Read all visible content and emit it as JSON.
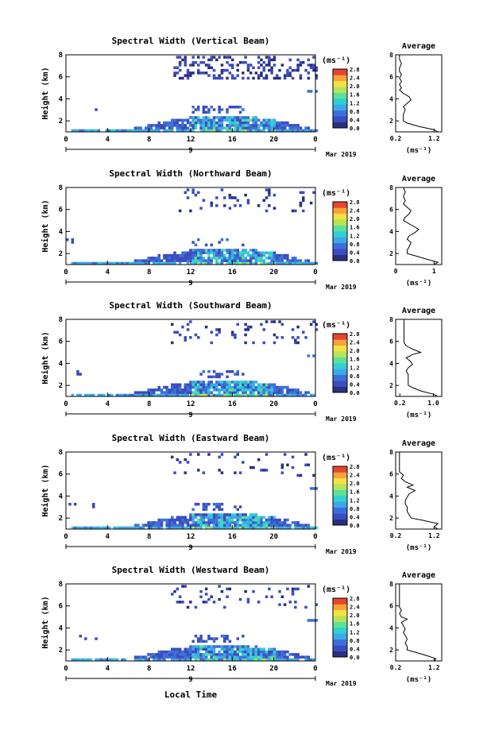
{
  "common": {
    "ylabel": "Height (km)",
    "y_ticks": [
      "2",
      "4",
      "6",
      "8"
    ],
    "x_ticks": [
      "0",
      "4",
      "8",
      "12",
      "16",
      "20",
      "0"
    ],
    "day_label": "9",
    "month_label": "Mar 2019",
    "unit_label": "(ms⁻¹)",
    "colorbar_ticks": [
      "0.0",
      "0.4",
      "0.8",
      "1.2",
      "1.6",
      "2.0",
      "2.4",
      "2.8"
    ],
    "avg_title": "Average",
    "avg_y_ticks": [
      "2",
      "4",
      "6",
      "8"
    ],
    "avg_xlabel": "(ms⁻¹)",
    "xlabel": "Local Time",
    "colors": {
      "colormap": [
        "#2b2f7e",
        "#3b4cc0",
        "#3d6fd8",
        "#3ea8e6",
        "#2fd0d4",
        "#5de09a",
        "#b6e35a",
        "#f3e245",
        "#f7a33a",
        "#e6452e"
      ],
      "background": "#ffffff"
    }
  },
  "chart_data": [
    {
      "type": "heatmap",
      "title": "Spectral Width (Vertical Beam)",
      "xlim": [
        0,
        24
      ],
      "ylim": [
        1,
        8
      ],
      "clim": [
        0.0,
        2.8
      ],
      "avg_profile": {
        "type": "line",
        "title": "Average",
        "x_ticks": [
          "0.2",
          "1.2"
        ],
        "xlim": [
          0.2,
          1.4
        ],
        "heights": [
          1.0,
          1.2,
          1.5,
          1.8,
          2.0,
          2.3,
          2.6,
          3.0,
          3.3,
          3.6,
          3.9,
          4.2,
          4.5,
          4.8,
          5.0,
          5.3,
          5.6,
          5.9,
          6.2,
          6.5,
          6.8,
          7.2,
          7.6,
          8.0
        ],
        "values": [
          1.3,
          1.2,
          0.8,
          0.5,
          0.4,
          0.4,
          0.4,
          0.45,
          0.4,
          0.5,
          0.6,
          0.55,
          0.4,
          0.3,
          0.35,
          0.3,
          0.35,
          0.3,
          0.35,
          0.3,
          0.3,
          0.35,
          0.3,
          0.3
        ]
      }
    },
    {
      "type": "heatmap",
      "title": "Spectral Width (Northward Beam)",
      "xlim": [
        0,
        24
      ],
      "ylim": [
        1,
        8
      ],
      "clim": [
        0.0,
        2.8
      ],
      "avg_profile": {
        "type": "line",
        "title": "Average",
        "x_ticks": [
          "0",
          "1"
        ],
        "xlim": [
          0.0,
          1.2
        ],
        "heights": [
          1.0,
          1.2,
          1.5,
          1.8,
          2.0,
          2.3,
          2.6,
          3.0,
          3.3,
          3.6,
          3.9,
          4.2,
          4.5,
          4.8,
          5.0,
          5.3,
          5.6,
          5.9,
          6.2,
          6.5,
          6.8,
          7.2,
          7.6,
          8.0
        ],
        "values": [
          1.0,
          1.1,
          0.8,
          0.5,
          0.3,
          0.3,
          0.35,
          0.4,
          0.3,
          0.35,
          0.5,
          0.6,
          0.45,
          0.3,
          0.2,
          0.25,
          0.35,
          0.4,
          0.3,
          0.2,
          0.25,
          0.2,
          0.25,
          0.2
        ]
      }
    },
    {
      "type": "heatmap",
      "title": "Spectral Width (Southward Beam)",
      "xlim": [
        0,
        24
      ],
      "ylim": [
        1,
        8
      ],
      "clim": [
        0.0,
        2.8
      ],
      "avg_profile": {
        "type": "line",
        "title": "Average",
        "x_ticks": [
          "0.2",
          "1.0"
        ],
        "xlim": [
          0.1,
          1.2
        ],
        "heights": [
          1.0,
          1.2,
          1.5,
          1.8,
          2.0,
          2.3,
          2.6,
          3.0,
          3.3,
          3.6,
          3.9,
          4.2,
          4.5,
          4.8,
          5.0,
          5.3,
          5.6,
          5.9,
          6.2,
          6.5,
          6.8,
          7.2,
          7.6,
          8.0
        ],
        "values": [
          1.1,
          1.0,
          0.7,
          0.5,
          0.4,
          0.4,
          0.4,
          0.4,
          0.35,
          0.4,
          0.5,
          0.45,
          0.35,
          0.5,
          0.7,
          0.5,
          0.35,
          0.3,
          0.3,
          0.3,
          0.3,
          0.3,
          0.3,
          0.3
        ]
      }
    },
    {
      "type": "heatmap",
      "title": "Spectral Width (Eastward Beam)",
      "xlim": [
        0,
        24
      ],
      "ylim": [
        1,
        8
      ],
      "clim": [
        0.0,
        2.8
      ],
      "avg_profile": {
        "type": "line",
        "title": "Average",
        "x_ticks": [
          "0.2",
          "1.2"
        ],
        "xlim": [
          0.2,
          1.4
        ],
        "heights": [
          1.0,
          1.2,
          1.5,
          1.8,
          2.0,
          2.3,
          2.6,
          3.0,
          3.3,
          3.6,
          3.9,
          4.2,
          4.5,
          4.8,
          5.0,
          5.3,
          5.6,
          5.9,
          6.2,
          6.5,
          6.8,
          7.2,
          7.6,
          8.0
        ],
        "values": [
          1.3,
          1.2,
          1.3,
          0.9,
          0.6,
          0.55,
          0.5,
          0.5,
          0.45,
          0.45,
          0.5,
          0.55,
          0.7,
          0.5,
          0.65,
          0.45,
          0.35,
          0.4,
          0.3,
          0.3,
          0.3,
          0.3,
          0.3,
          0.3
        ]
      }
    },
    {
      "type": "heatmap",
      "title": "Spectral Width (Westward Beam)",
      "xlim": [
        0,
        24
      ],
      "ylim": [
        1,
        8
      ],
      "clim": [
        0.0,
        2.8
      ],
      "avg_profile": {
        "type": "line",
        "title": "Average",
        "x_ticks": [
          "0.2",
          "1.2"
        ],
        "xlim": [
          0.2,
          1.4
        ],
        "heights": [
          1.0,
          1.2,
          1.5,
          1.8,
          2.0,
          2.3,
          2.6,
          3.0,
          3.3,
          3.6,
          3.9,
          4.2,
          4.5,
          4.8,
          5.0,
          5.3,
          5.6,
          5.9,
          6.2,
          6.5,
          6.8,
          7.2,
          7.6,
          8.0
        ],
        "values": [
          1.2,
          1.25,
          1.0,
          0.7,
          0.5,
          0.5,
          0.45,
          0.5,
          0.45,
          0.4,
          0.45,
          0.4,
          0.35,
          0.5,
          0.35,
          0.3,
          0.35,
          0.3,
          0.3,
          0.3,
          0.3,
          0.3,
          0.3,
          0.3
        ]
      }
    }
  ]
}
